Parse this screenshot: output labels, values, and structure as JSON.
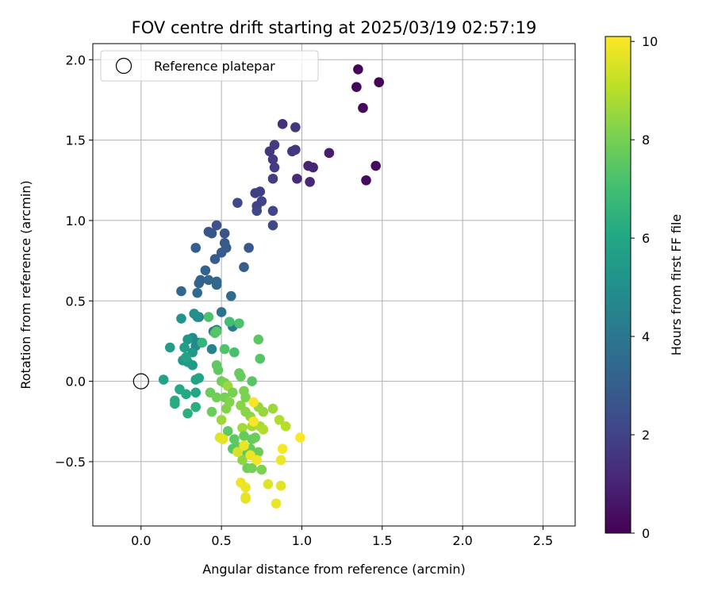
{
  "chart_data": {
    "type": "scatter",
    "title": "FOV centre drift starting at 2025/03/19 02:57:19",
    "xlabel": "Angular distance from reference (arcmin)",
    "ylabel": "Rotation from reference (arcmin)",
    "xlim": [
      -0.3,
      2.7
    ],
    "ylim": [
      -0.9,
      2.1
    ],
    "xticks": [
      0.0,
      0.5,
      1.0,
      1.5,
      2.0,
      2.5
    ],
    "xtick_labels": [
      "0.0",
      "0.5",
      "1.0",
      "1.5",
      "2.0",
      "2.5"
    ],
    "yticks": [
      -0.5,
      0.0,
      0.5,
      1.0,
      1.5,
      2.0
    ],
    "ytick_labels": [
      "−0.5",
      "0.0",
      "0.5",
      "1.0",
      "1.5",
      "2.0"
    ],
    "grid": true,
    "legend": {
      "placement": "top-left",
      "entries": [
        {
          "label": "Reference platepar",
          "marker": "open-circle"
        }
      ]
    },
    "reference_point": {
      "x": 0.0,
      "y": 0.0
    },
    "colorbar": {
      "label": "Hours from first FF file",
      "colormap": "viridis",
      "range": [
        0,
        10.1
      ],
      "ticks": [
        0,
        2,
        4,
        6,
        8,
        10
      ],
      "tick_labels": [
        "0",
        "2",
        "4",
        "6",
        "8",
        "10"
      ]
    },
    "points": [
      {
        "x": 1.35,
        "y": 1.94,
        "c": 0.1
      },
      {
        "x": 1.48,
        "y": 1.86,
        "c": 0.1
      },
      {
        "x": 1.34,
        "y": 1.83,
        "c": 0.2
      },
      {
        "x": 1.38,
        "y": 1.7,
        "c": 0.2
      },
      {
        "x": 1.46,
        "y": 1.34,
        "c": 0.3
      },
      {
        "x": 1.4,
        "y": 1.25,
        "c": 0.3
      },
      {
        "x": 1.17,
        "y": 1.42,
        "c": 0.8
      },
      {
        "x": 1.07,
        "y": 1.33,
        "c": 1.0
      },
      {
        "x": 1.04,
        "y": 1.34,
        "c": 1.0
      },
      {
        "x": 1.05,
        "y": 1.24,
        "c": 1.1
      },
      {
        "x": 0.97,
        "y": 1.26,
        "c": 1.2
      },
      {
        "x": 0.88,
        "y": 1.6,
        "c": 1.4
      },
      {
        "x": 0.96,
        "y": 1.58,
        "c": 1.5
      },
      {
        "x": 0.96,
        "y": 1.44,
        "c": 1.5
      },
      {
        "x": 0.94,
        "y": 1.43,
        "c": 1.6
      },
      {
        "x": 0.8,
        "y": 1.43,
        "c": 1.6
      },
      {
        "x": 0.83,
        "y": 1.47,
        "c": 1.7
      },
      {
        "x": 0.82,
        "y": 1.38,
        "c": 1.7
      },
      {
        "x": 0.83,
        "y": 1.33,
        "c": 1.8
      },
      {
        "x": 0.82,
        "y": 1.26,
        "c": 1.8
      },
      {
        "x": 0.74,
        "y": 1.18,
        "c": 1.9
      },
      {
        "x": 0.71,
        "y": 1.17,
        "c": 1.9
      },
      {
        "x": 0.75,
        "y": 1.12,
        "c": 2.0
      },
      {
        "x": 0.72,
        "y": 1.09,
        "c": 2.0
      },
      {
        "x": 0.72,
        "y": 1.06,
        "c": 2.1
      },
      {
        "x": 0.82,
        "y": 1.06,
        "c": 2.1
      },
      {
        "x": 0.82,
        "y": 0.97,
        "c": 2.2
      },
      {
        "x": 0.6,
        "y": 1.11,
        "c": 2.2
      },
      {
        "x": 0.47,
        "y": 0.97,
        "c": 2.5
      },
      {
        "x": 0.52,
        "y": 0.92,
        "c": 2.6
      },
      {
        "x": 0.42,
        "y": 0.93,
        "c": 2.7
      },
      {
        "x": 0.44,
        "y": 0.92,
        "c": 2.7
      },
      {
        "x": 0.52,
        "y": 0.86,
        "c": 2.8
      },
      {
        "x": 0.53,
        "y": 0.83,
        "c": 2.8
      },
      {
        "x": 0.5,
        "y": 0.8,
        "c": 2.9
      },
      {
        "x": 0.46,
        "y": 0.76,
        "c": 2.9
      },
      {
        "x": 0.67,
        "y": 0.83,
        "c": 2.8
      },
      {
        "x": 0.64,
        "y": 0.71,
        "c": 3.0
      },
      {
        "x": 0.34,
        "y": 0.83,
        "c": 3.0
      },
      {
        "x": 0.4,
        "y": 0.69,
        "c": 3.1
      },
      {
        "x": 0.37,
        "y": 0.63,
        "c": 3.2
      },
      {
        "x": 0.36,
        "y": 0.61,
        "c": 3.2
      },
      {
        "x": 0.42,
        "y": 0.63,
        "c": 3.3
      },
      {
        "x": 0.47,
        "y": 0.62,
        "c": 3.3
      },
      {
        "x": 0.47,
        "y": 0.6,
        "c": 3.4
      },
      {
        "x": 0.25,
        "y": 0.56,
        "c": 3.4
      },
      {
        "x": 0.35,
        "y": 0.55,
        "c": 3.5
      },
      {
        "x": 0.56,
        "y": 0.53,
        "c": 3.5
      },
      {
        "x": 0.5,
        "y": 0.43,
        "c": 3.8
      },
      {
        "x": 0.36,
        "y": 0.4,
        "c": 3.9
      },
      {
        "x": 0.45,
        "y": 0.31,
        "c": 4.1
      },
      {
        "x": 0.57,
        "y": 0.34,
        "c": 4.2
      },
      {
        "x": 0.47,
        "y": 0.32,
        "c": 4.3
      },
      {
        "x": 0.44,
        "y": 0.2,
        "c": 4.5
      },
      {
        "x": 0.36,
        "y": 0.24,
        "c": 4.6
      },
      {
        "x": 0.34,
        "y": 0.22,
        "c": 4.7
      },
      {
        "x": 0.32,
        "y": 0.27,
        "c": 4.8
      },
      {
        "x": 0.33,
        "y": 0.42,
        "c": 5.0
      },
      {
        "x": 0.35,
        "y": 0.4,
        "c": 5.0
      },
      {
        "x": 0.25,
        "y": 0.39,
        "c": 5.2
      },
      {
        "x": 0.29,
        "y": 0.26,
        "c": 5.3
      },
      {
        "x": 0.32,
        "y": 0.18,
        "c": 5.3
      },
      {
        "x": 0.26,
        "y": 0.13,
        "c": 5.4
      },
      {
        "x": 0.29,
        "y": 0.12,
        "c": 5.5
      },
      {
        "x": 0.32,
        "y": 0.1,
        "c": 5.5
      },
      {
        "x": 0.18,
        "y": 0.21,
        "c": 5.6
      },
      {
        "x": 0.27,
        "y": 0.21,
        "c": 5.7
      },
      {
        "x": 0.14,
        "y": 0.01,
        "c": 5.8
      },
      {
        "x": 0.34,
        "y": 0.01,
        "c": 5.8
      },
      {
        "x": 0.36,
        "y": 0.02,
        "c": 5.9
      },
      {
        "x": 0.28,
        "y": 0.15,
        "c": 5.9
      },
      {
        "x": 0.34,
        "y": -0.07,
        "c": 6.0
      },
      {
        "x": 0.24,
        "y": -0.05,
        "c": 6.1
      },
      {
        "x": 0.28,
        "y": -0.08,
        "c": 6.1
      },
      {
        "x": 0.21,
        "y": -0.12,
        "c": 6.2
      },
      {
        "x": 0.21,
        "y": -0.14,
        "c": 6.2
      },
      {
        "x": 0.34,
        "y": -0.16,
        "c": 6.3
      },
      {
        "x": 0.29,
        "y": -0.2,
        "c": 6.4
      },
      {
        "x": 0.38,
        "y": 0.24,
        "c": 6.6
      },
      {
        "x": 0.55,
        "y": 0.37,
        "c": 7.0
      },
      {
        "x": 0.61,
        "y": 0.36,
        "c": 7.2
      },
      {
        "x": 0.42,
        "y": 0.4,
        "c": 7.2
      },
      {
        "x": 0.46,
        "y": 0.3,
        "c": 7.3
      },
      {
        "x": 0.47,
        "y": 0.31,
        "c": 7.4
      },
      {
        "x": 0.52,
        "y": 0.2,
        "c": 7.3
      },
      {
        "x": 0.58,
        "y": 0.18,
        "c": 7.1
      },
      {
        "x": 0.73,
        "y": 0.26,
        "c": 7.5
      },
      {
        "x": 0.74,
        "y": 0.14,
        "c": 7.4
      },
      {
        "x": 0.47,
        "y": 0.1,
        "c": 7.6
      },
      {
        "x": 0.48,
        "y": 0.07,
        "c": 7.6
      },
      {
        "x": 0.61,
        "y": 0.05,
        "c": 7.7
      },
      {
        "x": 0.62,
        "y": 0.03,
        "c": 7.7
      },
      {
        "x": 0.69,
        "y": 0.0,
        "c": 7.4
      },
      {
        "x": 0.5,
        "y": 0.0,
        "c": 7.9
      },
      {
        "x": 0.52,
        "y": -0.01,
        "c": 8.0
      },
      {
        "x": 0.54,
        "y": -0.03,
        "c": 8.6
      },
      {
        "x": 0.43,
        "y": -0.07,
        "c": 7.8
      },
      {
        "x": 0.47,
        "y": -0.1,
        "c": 7.9
      },
      {
        "x": 0.52,
        "y": -0.1,
        "c": 8.0
      },
      {
        "x": 0.57,
        "y": -0.07,
        "c": 8.0
      },
      {
        "x": 0.64,
        "y": -0.06,
        "c": 8.1
      },
      {
        "x": 0.65,
        "y": -0.1,
        "c": 8.1
      },
      {
        "x": 0.55,
        "y": -0.13,
        "c": 8.2
      },
      {
        "x": 0.53,
        "y": -0.17,
        "c": 8.2
      },
      {
        "x": 0.44,
        "y": -0.19,
        "c": 7.8
      },
      {
        "x": 0.62,
        "y": -0.15,
        "c": 8.3
      },
      {
        "x": 0.65,
        "y": -0.19,
        "c": 8.3
      },
      {
        "x": 0.68,
        "y": -0.22,
        "c": 8.4
      },
      {
        "x": 0.73,
        "y": -0.16,
        "c": 8.5
      },
      {
        "x": 0.76,
        "y": -0.19,
        "c": 8.5
      },
      {
        "x": 0.82,
        "y": -0.17,
        "c": 8.6
      },
      {
        "x": 0.5,
        "y": -0.24,
        "c": 8.6
      },
      {
        "x": 0.63,
        "y": -0.29,
        "c": 8.7
      },
      {
        "x": 0.69,
        "y": -0.28,
        "c": 8.7
      },
      {
        "x": 0.74,
        "y": -0.28,
        "c": 8.8
      },
      {
        "x": 0.76,
        "y": -0.3,
        "c": 8.9
      },
      {
        "x": 0.86,
        "y": -0.24,
        "c": 8.9
      },
      {
        "x": 0.9,
        "y": -0.28,
        "c": 9.0
      },
      {
        "x": 0.54,
        "y": -0.31,
        "c": 7.6
      },
      {
        "x": 0.58,
        "y": -0.36,
        "c": 7.6
      },
      {
        "x": 0.64,
        "y": -0.34,
        "c": 7.7
      },
      {
        "x": 0.69,
        "y": -0.36,
        "c": 7.7
      },
      {
        "x": 0.71,
        "y": -0.35,
        "c": 7.8
      },
      {
        "x": 0.57,
        "y": -0.42,
        "c": 7.4
      },
      {
        "x": 0.61,
        "y": -0.41,
        "c": 7.5
      },
      {
        "x": 0.66,
        "y": -0.45,
        "c": 7.6
      },
      {
        "x": 0.68,
        "y": -0.42,
        "c": 7.7
      },
      {
        "x": 0.73,
        "y": -0.44,
        "c": 7.8
      },
      {
        "x": 0.66,
        "y": -0.54,
        "c": 7.9
      },
      {
        "x": 0.69,
        "y": -0.54,
        "c": 8.0
      },
      {
        "x": 0.75,
        "y": -0.55,
        "c": 8.1
      },
      {
        "x": 0.63,
        "y": -0.49,
        "c": 8.4
      },
      {
        "x": 0.6,
        "y": -0.44,
        "c": 9.5
      },
      {
        "x": 0.49,
        "y": -0.35,
        "c": 9.6
      },
      {
        "x": 0.51,
        "y": -0.36,
        "c": 9.7
      },
      {
        "x": 0.64,
        "y": -0.4,
        "c": 9.8
      },
      {
        "x": 0.68,
        "y": -0.46,
        "c": 9.8
      },
      {
        "x": 0.72,
        "y": -0.49,
        "c": 9.9
      },
      {
        "x": 0.7,
        "y": -0.13,
        "c": 10.0
      },
      {
        "x": 0.7,
        "y": -0.25,
        "c": 10.0
      },
      {
        "x": 0.99,
        "y": -0.35,
        "c": 10.1
      },
      {
        "x": 0.88,
        "y": -0.42,
        "c": 10.0
      },
      {
        "x": 0.87,
        "y": -0.49,
        "c": 9.9
      },
      {
        "x": 0.62,
        "y": -0.63,
        "c": 9.9
      },
      {
        "x": 0.65,
        "y": -0.66,
        "c": 9.8
      },
      {
        "x": 0.65,
        "y": -0.72,
        "c": 9.9
      },
      {
        "x": 0.65,
        "y": -0.73,
        "c": 9.7
      },
      {
        "x": 0.79,
        "y": -0.64,
        "c": 9.6
      },
      {
        "x": 0.87,
        "y": -0.65,
        "c": 9.7
      },
      {
        "x": 0.84,
        "y": -0.76,
        "c": 9.8
      }
    ]
  }
}
